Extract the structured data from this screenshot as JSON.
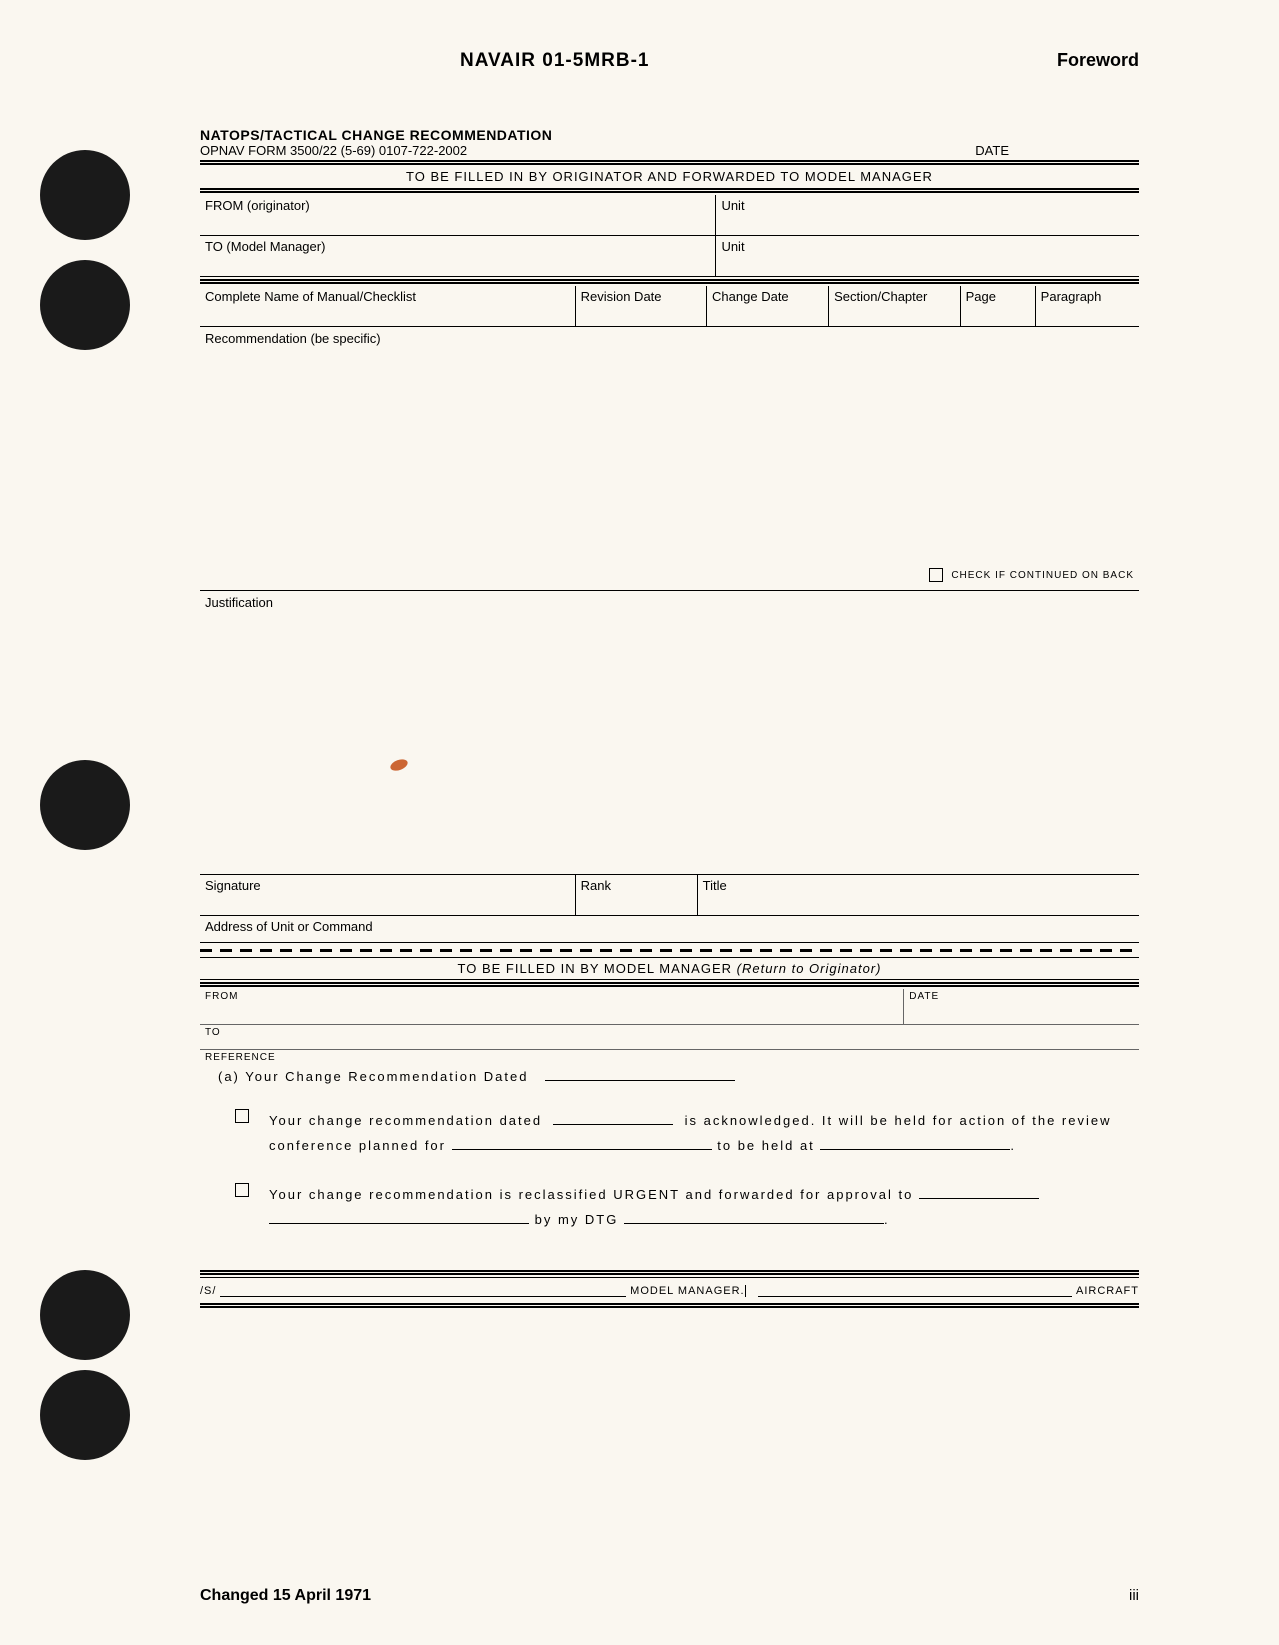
{
  "header": {
    "doc_id": "NAVAIR 01-5MRB-1",
    "foreword": "Foreword"
  },
  "form": {
    "title": "NATOPS/TACTICAL CHANGE RECOMMENDATION",
    "subtitle": "OPNAV FORM 3500/22 (5-69) 0107-722-2002",
    "date_label": "DATE",
    "banner1": "TO BE FILLED IN BY ORIGINATOR AND FORWARDED TO MODEL MANAGER",
    "from_label": "FROM (originator)",
    "unit_label": "Unit",
    "to_label": "TO (Model Manager)",
    "manual_label": "Complete Name of Manual/Checklist",
    "revdate_label": "Revision Date",
    "chgdate_label": "Change Date",
    "section_label": "Section/Chapter",
    "page_label": "Page",
    "para_label": "Paragraph",
    "recommendation_label": "Recommendation (be specific)",
    "check_continued": "CHECK IF CONTINUED ON BACK",
    "justification_label": "Justification",
    "signature_label": "Signature",
    "rank_label": "Rank",
    "title_label": "Title",
    "address_label": "Address of Unit or Command"
  },
  "mm": {
    "banner_text": "TO BE FILLED IN BY MODEL MANAGER",
    "banner_italic": "(Return to Originator)",
    "from_label": "FROM",
    "date_label": "DATE",
    "to_label": "TO",
    "ref_label": "REFERENCE",
    "ref_line": "(a) Your Change Recommendation Dated",
    "ack_text1": "Your change recommendation dated",
    "ack_text2": "is acknowledged.  It will be held for action of the review conference planned for",
    "ack_text3": "to be held at",
    "urgent_text1": "Your change recommendation is reclassified URGENT and forwarded for approval to",
    "urgent_text2": "by my DTG",
    "sig_s": "/S/",
    "model_manager": "MODEL MANAGER.",
    "aircraft": "AIRCRAFT"
  },
  "footer": {
    "changed": "Changed 15 April 1971",
    "page_num": "iii"
  },
  "colors": {
    "page_bg": "#faf7f0",
    "text": "#000000",
    "hole": "#1a1a1a"
  }
}
